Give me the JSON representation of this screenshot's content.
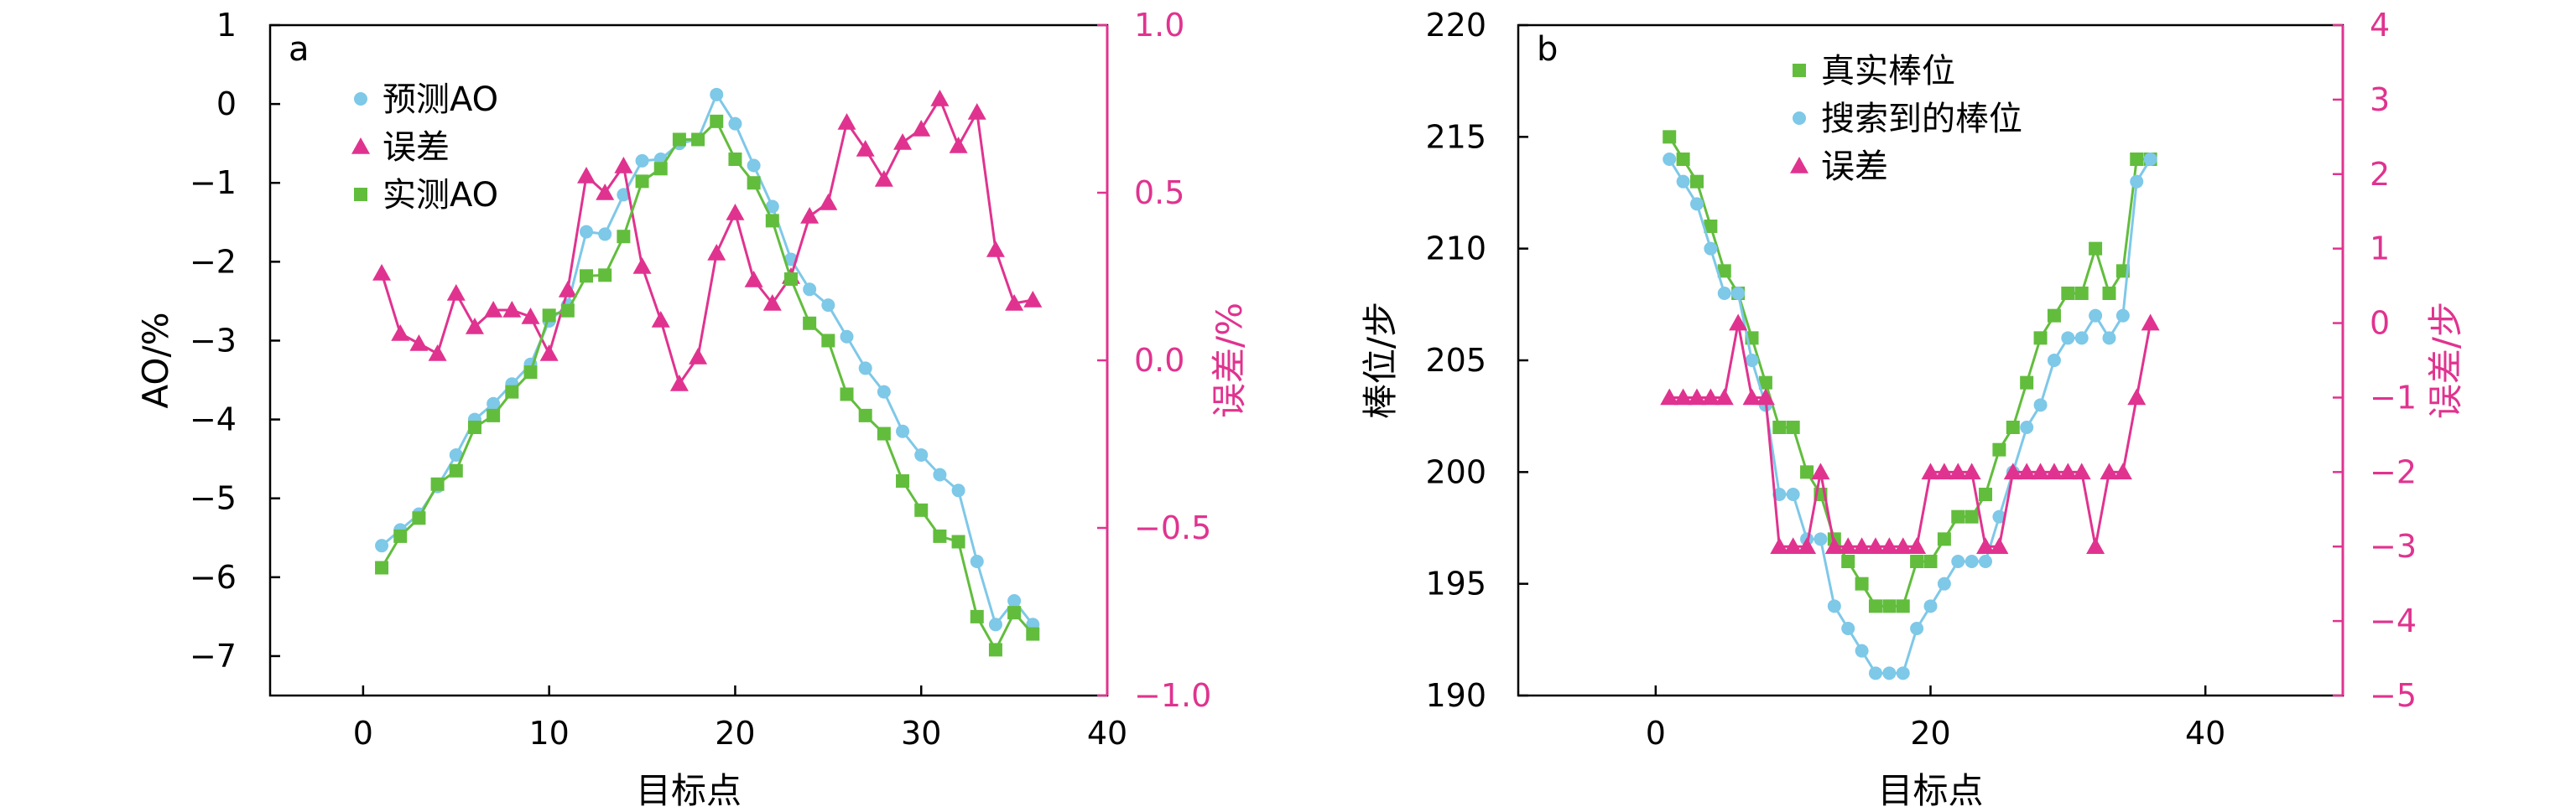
{
  "colors": {
    "pred": "#7ec8e8",
    "err": "#e0338f",
    "meas": "#62bd3d",
    "axis": "#000000"
  },
  "chart_data": [
    {
      "type": "line",
      "panel_label": "a",
      "xlabel": "目标点",
      "ylabel": "AO/%",
      "y2label": "误差/%",
      "xlim": [
        -5,
        40
      ],
      "ylim": [
        -7.5,
        1
      ],
      "y2lim": [
        -1.0,
        1.0
      ],
      "xticks": [
        "0",
        "10",
        "20",
        "30",
        "40"
      ],
      "yticks": [
        "1",
        "0",
        "−1",
        "−2",
        "−3",
        "−4",
        "−5",
        "−6",
        "−7"
      ],
      "y2ticks": [
        "1.0",
        "0.5",
        "0.0",
        "−0.5",
        "−1.0"
      ],
      "legend": [
        "预测AO",
        "误差",
        "实测AO"
      ],
      "legend_position": "top-left",
      "x": [
        1,
        2,
        3,
        4,
        5,
        6,
        7,
        8,
        9,
        10,
        11,
        12,
        13,
        14,
        15,
        16,
        17,
        18,
        19,
        20,
        21,
        22,
        23,
        24,
        25,
        26,
        27,
        28,
        29,
        30,
        31,
        32,
        33,
        34,
        35,
        36
      ],
      "series": [
        {
          "name": "预测AO",
          "axis": "left",
          "marker": "circle",
          "values": [
            -5.6,
            -5.4,
            -5.2,
            -4.85,
            -4.45,
            -4.0,
            -3.8,
            -3.55,
            -3.3,
            -2.75,
            -2.55,
            -1.62,
            -1.65,
            -1.15,
            -0.72,
            -0.7,
            -0.5,
            -0.45,
            0.12,
            -0.25,
            -0.78,
            -1.3,
            -1.97,
            -2.35,
            -2.55,
            -2.95,
            -3.35,
            -3.65,
            -4.15,
            -4.45,
            -4.7,
            -4.9,
            -5.8,
            -6.6,
            -6.3,
            -6.6
          ]
        },
        {
          "name": "误差",
          "axis": "right",
          "marker": "triangle",
          "values": [
            0.26,
            0.08,
            0.05,
            0.02,
            0.2,
            0.1,
            0.15,
            0.15,
            0.13,
            0.02,
            0.21,
            0.55,
            0.5,
            0.58,
            0.28,
            0.12,
            -0.07,
            0.01,
            0.32,
            0.44,
            0.24,
            0.17,
            0.25,
            0.43,
            0.47,
            0.71,
            0.63,
            0.54,
            0.65,
            0.69,
            0.78,
            0.64,
            0.74,
            0.33,
            0.17,
            0.18
          ]
        },
        {
          "name": "实测AO",
          "axis": "left",
          "marker": "square",
          "values": [
            -5.88,
            -5.48,
            -5.25,
            -4.82,
            -4.65,
            -4.1,
            -3.95,
            -3.65,
            -3.4,
            -2.68,
            -2.62,
            -2.18,
            -2.17,
            -1.68,
            -0.98,
            -0.82,
            -0.45,
            -0.45,
            -0.22,
            -0.7,
            -1.0,
            -1.48,
            -2.22,
            -2.78,
            -3.0,
            -3.68,
            -3.95,
            -4.18,
            -4.78,
            -5.15,
            -5.48,
            -5.55,
            -6.5,
            -6.92,
            -6.45,
            -6.72
          ]
        }
      ]
    },
    {
      "type": "line",
      "panel_label": "b",
      "xlabel": "目标点",
      "ylabel": "棒位/步",
      "y2label": "误差/步",
      "xlim": [
        -10,
        50
      ],
      "ylim": [
        190,
        220
      ],
      "y2lim": [
        -5,
        4
      ],
      "xticks": [
        "0",
        "20",
        "40"
      ],
      "yticks": [
        "220",
        "215",
        "210",
        "205",
        "200",
        "195",
        "190"
      ],
      "y2ticks": [
        "4",
        "3",
        "2",
        "1",
        "0",
        "−1",
        "−2",
        "−3",
        "−4",
        "−5"
      ],
      "legend": [
        "真实棒位",
        "搜索到的棒位",
        "误差"
      ],
      "legend_position": "top-center",
      "x": [
        1,
        2,
        3,
        4,
        5,
        6,
        7,
        8,
        9,
        10,
        11,
        12,
        13,
        14,
        15,
        16,
        17,
        18,
        19,
        20,
        21,
        22,
        23,
        24,
        25,
        26,
        27,
        28,
        29,
        30,
        31,
        32,
        33,
        34,
        35,
        36
      ],
      "series": [
        {
          "name": "真实棒位",
          "axis": "left",
          "marker": "square",
          "values": [
            215,
            214,
            213,
            211,
            209,
            208,
            206,
            204,
            202,
            202,
            200,
            199,
            197,
            196,
            195,
            194,
            194,
            194,
            196,
            196,
            197,
            198,
            198,
            199,
            201,
            202,
            204,
            206,
            207,
            208,
            208,
            210,
            208,
            209,
            214,
            214
          ]
        },
        {
          "name": "搜索到的棒位",
          "axis": "left",
          "marker": "circle",
          "values": [
            214,
            213,
            212,
            210,
            208,
            208,
            205,
            203,
            199,
            199,
            197,
            197,
            194,
            193,
            192,
            191,
            191,
            191,
            193,
            194,
            195,
            196,
            196,
            196,
            198,
            200,
            202,
            203,
            205,
            206,
            206,
            207,
            206,
            207,
            213,
            214
          ]
        },
        {
          "name": "误差",
          "axis": "right",
          "marker": "triangle",
          "values": [
            -1,
            -1,
            -1,
            -1,
            -1,
            0,
            -1,
            -1,
            -3,
            -3,
            -3,
            -2,
            -3,
            -3,
            -3,
            -3,
            -3,
            -3,
            -3,
            -2,
            -2,
            -2,
            -2,
            -3,
            -3,
            -2,
            -2,
            -2,
            -2,
            -2,
            -2,
            -3,
            -2,
            -2,
            -1,
            0
          ]
        }
      ]
    }
  ]
}
